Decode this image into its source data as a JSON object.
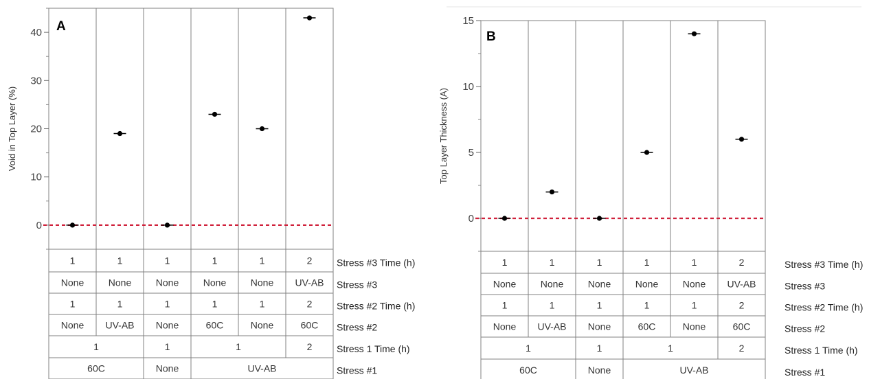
{
  "chart_data": [
    {
      "type": "scatter",
      "panel_label": "A",
      "ylabel": "Void in Top Layer (%)",
      "ylim": [
        -5,
        45
      ],
      "yticks": [
        0,
        10,
        20,
        30,
        40
      ],
      "reference_line": 0,
      "values": [
        0,
        19,
        0,
        23,
        20,
        43
      ],
      "rows": [
        {
          "label": "Stress #3 Time (h)",
          "cells": [
            {
              "text": "1",
              "span": 1
            },
            {
              "text": "1",
              "span": 1
            },
            {
              "text": "1",
              "span": 1
            },
            {
              "text": "1",
              "span": 1
            },
            {
              "text": "1",
              "span": 1
            },
            {
              "text": "2",
              "span": 1
            }
          ]
        },
        {
          "label": "Stress #3",
          "cells": [
            {
              "text": "None",
              "span": 1
            },
            {
              "text": "None",
              "span": 1
            },
            {
              "text": "None",
              "span": 1
            },
            {
              "text": "None",
              "span": 1
            },
            {
              "text": "None",
              "span": 1
            },
            {
              "text": "UV-AB",
              "span": 1
            }
          ]
        },
        {
          "label": "Stress #2 Time (h)",
          "cells": [
            {
              "text": "1",
              "span": 1
            },
            {
              "text": "1",
              "span": 1
            },
            {
              "text": "1",
              "span": 1
            },
            {
              "text": "1",
              "span": 1
            },
            {
              "text": "1",
              "span": 1
            },
            {
              "text": "2",
              "span": 1
            }
          ]
        },
        {
          "label": "Stress #2",
          "cells": [
            {
              "text": "None",
              "span": 1
            },
            {
              "text": "UV-AB",
              "span": 1
            },
            {
              "text": "None",
              "span": 1
            },
            {
              "text": "60C",
              "span": 1
            },
            {
              "text": "None",
              "span": 1
            },
            {
              "text": "60C",
              "span": 1
            }
          ]
        },
        {
          "label": "Stress 1 Time (h)",
          "cells": [
            {
              "text": "1",
              "span": 2
            },
            {
              "text": "1",
              "span": 1
            },
            {
              "text": "1",
              "span": 2
            },
            {
              "text": "2",
              "span": 1
            }
          ]
        },
        {
          "label": "Stress #1",
          "cells": [
            {
              "text": "60C",
              "span": 2
            },
            {
              "text": "None",
              "span": 1
            },
            {
              "text": "UV-AB",
              "span": 3
            }
          ]
        }
      ]
    },
    {
      "type": "scatter",
      "panel_label": "B",
      "ylabel": "Top Layer Thickness (A)",
      "ylim": [
        -2.5,
        15
      ],
      "yticks": [
        0,
        5,
        10,
        15
      ],
      "reference_line": 0,
      "values": [
        0,
        2,
        0,
        5,
        14,
        6
      ],
      "rows": [
        {
          "label": "Stress #3 Time (h)",
          "cells": [
            {
              "text": "1",
              "span": 1
            },
            {
              "text": "1",
              "span": 1
            },
            {
              "text": "1",
              "span": 1
            },
            {
              "text": "1",
              "span": 1
            },
            {
              "text": "1",
              "span": 1
            },
            {
              "text": "2",
              "span": 1
            }
          ]
        },
        {
          "label": "Stress #3",
          "cells": [
            {
              "text": "None",
              "span": 1
            },
            {
              "text": "None",
              "span": 1
            },
            {
              "text": "None",
              "span": 1
            },
            {
              "text": "None",
              "span": 1
            },
            {
              "text": "None",
              "span": 1
            },
            {
              "text": "UV-AB",
              "span": 1
            }
          ]
        },
        {
          "label": "Stress #2 Time (h)",
          "cells": [
            {
              "text": "1",
              "span": 1
            },
            {
              "text": "1",
              "span": 1
            },
            {
              "text": "1",
              "span": 1
            },
            {
              "text": "1",
              "span": 1
            },
            {
              "text": "1",
              "span": 1
            },
            {
              "text": "2",
              "span": 1
            }
          ]
        },
        {
          "label": "Stress #2",
          "cells": [
            {
              "text": "None",
              "span": 1
            },
            {
              "text": "UV-AB",
              "span": 1
            },
            {
              "text": "None",
              "span": 1
            },
            {
              "text": "60C",
              "span": 1
            },
            {
              "text": "None",
              "span": 1
            },
            {
              "text": "60C",
              "span": 1
            }
          ]
        },
        {
          "label": "Stress 1 Time (h)",
          "cells": [
            {
              "text": "1",
              "span": 2
            },
            {
              "text": "1",
              "span": 1
            },
            {
              "text": "1",
              "span": 2
            },
            {
              "text": "2",
              "span": 1
            }
          ]
        },
        {
          "label": "Stress #1",
          "cells": [
            {
              "text": "60C",
              "span": 2
            },
            {
              "text": "None",
              "span": 1
            },
            {
              "text": "UV-AB",
              "span": 3
            }
          ]
        }
      ]
    }
  ],
  "colors": {
    "reference_line": "#d0213b",
    "marker": "#000000",
    "grid": "#808080"
  }
}
